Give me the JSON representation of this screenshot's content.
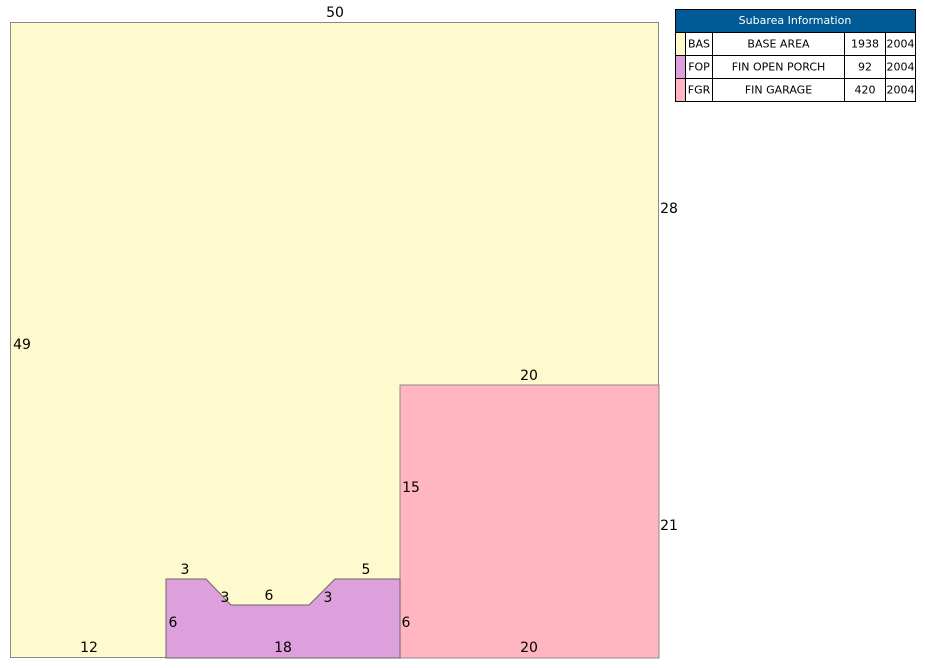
{
  "dimensions": [
    "50",
    "28",
    "49",
    "20",
    "15",
    "21",
    "3",
    "5",
    "3",
    "6",
    "3",
    "6",
    "6",
    "12",
    "18",
    "20"
  ],
  "table": {
    "title": "Subarea Information",
    "rows": [
      [
        "BAS",
        "BASE AREA",
        "1938",
        "2004"
      ],
      [
        "FOP",
        "FIN OPEN PORCH",
        "92",
        "2004"
      ],
      [
        "FGR",
        "FIN GARAGE",
        "420",
        "2004"
      ]
    ]
  }
}
